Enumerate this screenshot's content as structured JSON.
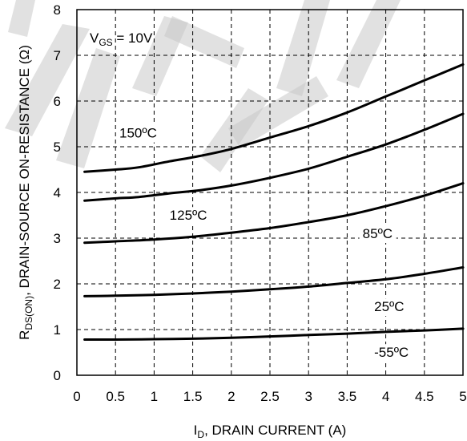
{
  "chart_data": {
    "type": "line",
    "xlabel": "I",
    "xlabel_sub": "D",
    "xlabel_rest": ", DRAIN CURRENT (A)",
    "ylabel": "R",
    "ylabel_sub": "DS(ON)",
    "ylabel_rest": ",   DRAIN-SOURCE ON-RESISTANCE (Ω)",
    "xlim": [
      0,
      5
    ],
    "ylim": [
      0,
      8
    ],
    "grid": true,
    "x_ticks": [
      "0",
      "0.5",
      "1",
      "1.5",
      "2",
      "2.5",
      "3",
      "3.5",
      "4",
      "4.5",
      "5"
    ],
    "y_ticks": [
      "0",
      "1",
      "2",
      "3",
      "4",
      "5",
      "6",
      "7",
      "8"
    ],
    "annotation": {
      "prefix": "V",
      "sub": "GS",
      "suffix": " = 10V"
    },
    "series": [
      {
        "name": "150ºC",
        "x": [
          0.1,
          0.5,
          0.8,
          1.2,
          1.6,
          2.0,
          2.5,
          3.0,
          3.5,
          4.0,
          4.5,
          5.0
        ],
        "y": [
          4.45,
          4.5,
          4.55,
          4.68,
          4.8,
          4.95,
          5.2,
          5.45,
          5.75,
          6.1,
          6.45,
          6.8
        ]
      },
      {
        "name": "125ºC",
        "x": [
          0.1,
          0.5,
          0.8,
          1.2,
          1.6,
          2.0,
          2.5,
          3.0,
          3.5,
          4.0,
          4.5,
          5.0
        ],
        "y": [
          3.82,
          3.87,
          3.9,
          3.98,
          4.05,
          4.15,
          4.32,
          4.52,
          4.78,
          5.05,
          5.37,
          5.72
        ]
      },
      {
        "name": "85ºC",
        "x": [
          0.1,
          0.5,
          1.0,
          1.5,
          2.0,
          2.5,
          3.0,
          3.5,
          4.0,
          4.5,
          5.0
        ],
        "y": [
          2.9,
          2.93,
          2.97,
          3.03,
          3.12,
          3.22,
          3.35,
          3.5,
          3.7,
          3.93,
          4.2
        ]
      },
      {
        "name": "25ºC",
        "x": [
          0.1,
          0.5,
          1.0,
          1.5,
          2.0,
          2.5,
          3.0,
          3.5,
          4.0,
          4.5,
          5.0
        ],
        "y": [
          1.73,
          1.74,
          1.76,
          1.79,
          1.83,
          1.88,
          1.94,
          2.02,
          2.1,
          2.22,
          2.36
        ]
      },
      {
        "name": "-55ºC",
        "x": [
          0.1,
          0.5,
          1.0,
          1.5,
          2.0,
          2.5,
          3.0,
          3.5,
          4.0,
          4.5,
          5.0
        ],
        "y": [
          0.78,
          0.78,
          0.79,
          0.8,
          0.82,
          0.85,
          0.88,
          0.91,
          0.95,
          0.98,
          1.02
        ]
      }
    ]
  }
}
